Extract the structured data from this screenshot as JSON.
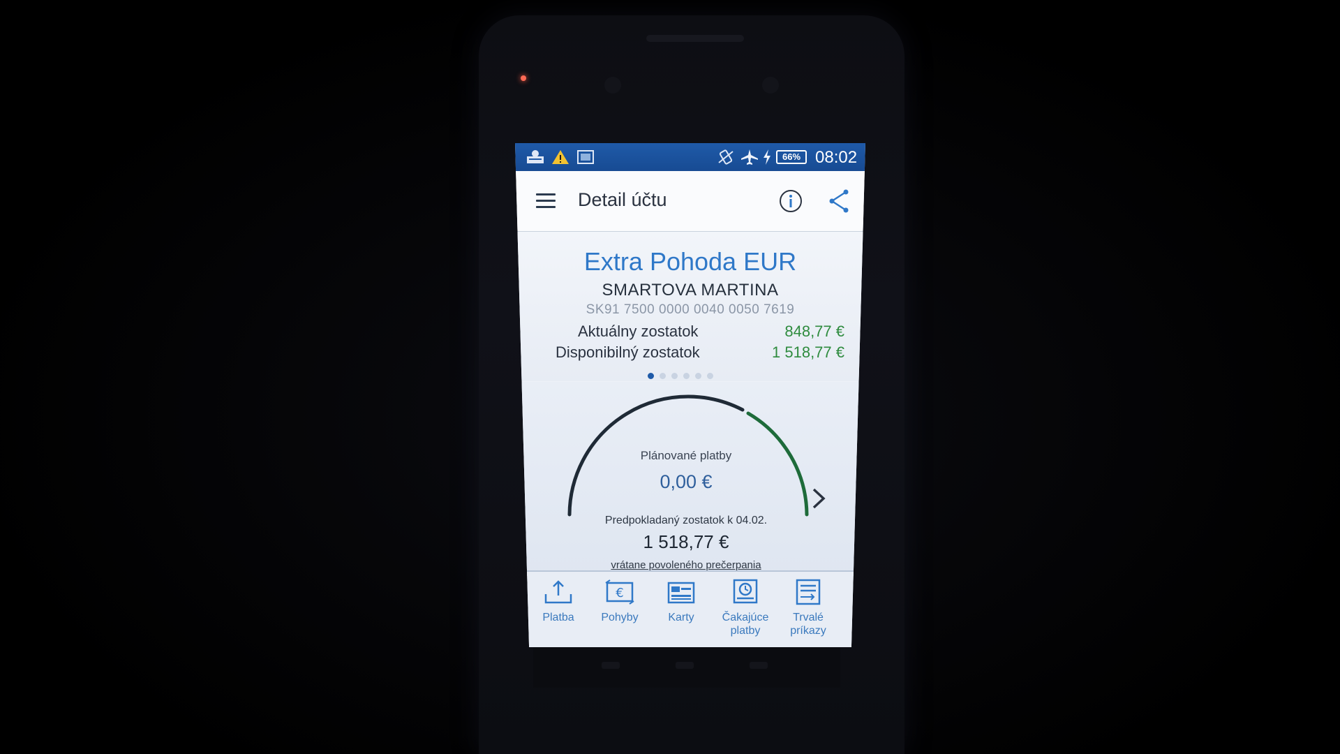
{
  "status_bar": {
    "icons": [
      "bank-app-icon",
      "warning-icon",
      "screenshot-icon",
      "vibrate-icon",
      "airplane-icon",
      "charging-icon"
    ],
    "battery": "66%",
    "time": "08:02"
  },
  "app_bar": {
    "title": "Detail účtu",
    "icons": [
      "menu-icon",
      "info-icon",
      "share-icon"
    ]
  },
  "account": {
    "name": "Extra Pohoda EUR",
    "holder": "SMARTOVA MARTINA",
    "iban": "SK91 7500 0000 0040 0050 7619",
    "balances": [
      {
        "label": "Aktuálny zostatok",
        "value": "848,77 €"
      },
      {
        "label": "Disponibilný zostatok",
        "value": "1 518,77 €"
      }
    ],
    "pager": {
      "count": 6,
      "active": 0
    }
  },
  "gauge": {
    "label": "Plánované platby",
    "value": "0,00 €",
    "projected_label": "Predpokladaný zostatok k 04.02.",
    "projected_value": "1 518,77 €",
    "note": "vrátane povoleného prečerpania",
    "colors": {
      "track": "#1f2a36",
      "highlight": "#1e6b3a"
    }
  },
  "bottom_nav": [
    {
      "label": "Platba",
      "icon": "upload-icon"
    },
    {
      "label": "Pohyby",
      "icon": "euro-transfer-icon"
    },
    {
      "label": "Karty",
      "icon": "card-icon"
    },
    {
      "label": "Čakajúce platby",
      "icon": "clock-document-icon"
    },
    {
      "label": "Trvalé príkazy",
      "icon": "standing-order-icon"
    }
  ],
  "colors": {
    "status_bar": "#1f5aa8",
    "accent_blue": "#2f78c8",
    "balance_green": "#2e8b3e"
  }
}
